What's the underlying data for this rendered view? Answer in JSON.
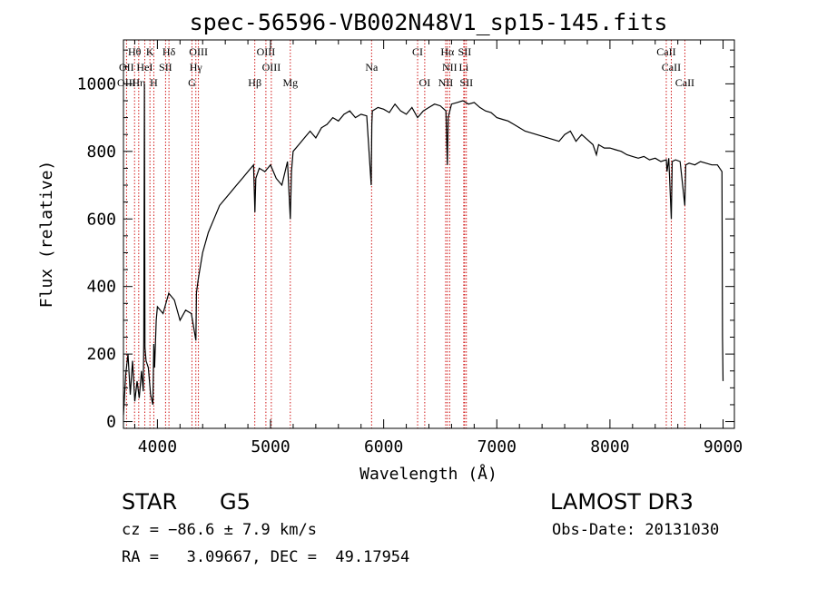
{
  "chart_data": {
    "type": "line",
    "title": "spec-56596-VB002N48V1_sp15-145.fits",
    "xlabel": "Wavelength (Å)",
    "ylabel": "Flux (relative)",
    "xlim": [
      3700,
      9100
    ],
    "ylim": [
      -20,
      1130
    ],
    "xticks": [
      4000,
      5000,
      6000,
      7000,
      8000,
      9000
    ],
    "xtick_labels": [
      "4000",
      "5000",
      "6000",
      "7000",
      "8000",
      "9000"
    ],
    "yticks": [
      0,
      200,
      400,
      600,
      800,
      1000
    ],
    "ytick_labels": [
      "0",
      "200",
      "400",
      "600",
      "800",
      "1000"
    ],
    "series": [
      {
        "name": "flux",
        "x": [
          3700,
          3720,
          3740,
          3760,
          3780,
          3800,
          3820,
          3840,
          3860,
          3875,
          3880,
          3885,
          3890,
          3900,
          3920,
          3940,
          3960,
          3968,
          3975,
          3990,
          4000,
          4050,
          4100,
          4150,
          4200,
          4250,
          4300,
          4340,
          4345,
          4360,
          4400,
          4450,
          4500,
          4550,
          4600,
          4650,
          4700,
          4750,
          4800,
          4850,
          4862,
          4870,
          4900,
          4950,
          5000,
          5050,
          5100,
          5150,
          5175,
          5185,
          5200,
          5250,
          5300,
          5350,
          5400,
          5450,
          5500,
          5550,
          5600,
          5650,
          5700,
          5750,
          5800,
          5850,
          5890,
          5895,
          5900,
          5950,
          6000,
          6050,
          6100,
          6150,
          6200,
          6250,
          6300,
          6350,
          6400,
          6450,
          6500,
          6550,
          6563,
          6570,
          6600,
          6650,
          6700,
          6750,
          6800,
          6850,
          6900,
          6950,
          7000,
          7050,
          7100,
          7150,
          7200,
          7250,
          7300,
          7350,
          7400,
          7450,
          7500,
          7550,
          7600,
          7650,
          7700,
          7750,
          7800,
          7850,
          7880,
          7900,
          7950,
          8000,
          8050,
          8100,
          8150,
          8200,
          8250,
          8300,
          8350,
          8400,
          8450,
          8498,
          8505,
          8520,
          8542,
          8550,
          8580,
          8620,
          8662,
          8670,
          8700,
          8750,
          8800,
          8850,
          8900,
          8950,
          8990,
          8995,
          9000
        ],
        "y": [
          20,
          140,
          200,
          80,
          180,
          60,
          120,
          70,
          150,
          90,
          240,
          1000,
          220,
          180,
          160,
          80,
          50,
          230,
          160,
          300,
          340,
          320,
          380,
          360,
          300,
          330,
          320,
          240,
          380,
          420,
          500,
          560,
          600,
          640,
          660,
          680,
          700,
          720,
          740,
          760,
          620,
          720,
          750,
          740,
          760,
          720,
          700,
          770,
          600,
          740,
          800,
          820,
          840,
          860,
          840,
          870,
          880,
          900,
          890,
          910,
          920,
          900,
          910,
          905,
          700,
          880,
          920,
          930,
          925,
          915,
          940,
          920,
          910,
          930,
          900,
          920,
          930,
          940,
          935,
          920,
          760,
          900,
          940,
          945,
          950,
          940,
          945,
          930,
          920,
          915,
          900,
          895,
          890,
          880,
          870,
          860,
          855,
          850,
          845,
          840,
          835,
          830,
          850,
          860,
          830,
          850,
          835,
          820,
          790,
          820,
          810,
          810,
          805,
          800,
          790,
          785,
          780,
          785,
          775,
          780,
          770,
          775,
          740,
          780,
          600,
          770,
          775,
          770,
          640,
          760,
          765,
          760,
          770,
          765,
          760,
          760,
          740,
          250,
          120
        ]
      }
    ],
    "spectral_lines": [
      {
        "label": "Hθ",
        "x": 3798,
        "row": 1
      },
      {
        "label": "K",
        "x": 3934,
        "row": 1
      },
      {
        "label": "Hδ",
        "x": 4102,
        "row": 1
      },
      {
        "label": "OIII",
        "x": 4363,
        "row": 1
      },
      {
        "label": "OIII",
        "x": 4959,
        "row": 1
      },
      {
        "label": "CI",
        "x": 6300,
        "row": 1
      },
      {
        "label": "Hα",
        "x": 6563,
        "row": 1
      },
      {
        "label": "SII",
        "x": 6716,
        "row": 1
      },
      {
        "label": "CaII",
        "x": 8498,
        "row": 1
      },
      {
        "label": "OII",
        "x": 3727,
        "row": 2
      },
      {
        "label": "HeI",
        "x": 3888,
        "row": 2
      },
      {
        "label": "SII",
        "x": 4072,
        "row": 2
      },
      {
        "label": "Hγ",
        "x": 4340,
        "row": 2
      },
      {
        "label": "OIII",
        "x": 5007,
        "row": 2
      },
      {
        "label": "Na",
        "x": 5893,
        "row": 2
      },
      {
        "label": "NII",
        "x": 6583,
        "row": 2
      },
      {
        "label": "Li",
        "x": 6708,
        "row": 2
      },
      {
        "label": "CaII",
        "x": 8542,
        "row": 2
      },
      {
        "label": "OIII",
        "x": 3727,
        "row": 3
      },
      {
        "label": "Hη",
        "x": 3835,
        "row": 3
      },
      {
        "label": "H",
        "x": 3968,
        "row": 3
      },
      {
        "label": "G",
        "x": 4305,
        "row": 3
      },
      {
        "label": "Hβ",
        "x": 4861,
        "row": 3
      },
      {
        "label": "Mg",
        "x": 5175,
        "row": 3
      },
      {
        "label": "OI",
        "x": 6363,
        "row": 3
      },
      {
        "label": "NII",
        "x": 6548,
        "row": 3
      },
      {
        "label": "SII",
        "x": 6731,
        "row": 3
      },
      {
        "label": "CaII",
        "x": 8662,
        "row": 3
      }
    ]
  },
  "info": {
    "class": "STAR",
    "subclass": "G5",
    "survey": "LAMOST DR3",
    "cz": "cz = −86.6 ± 7.9 km/s",
    "obs_date": "Obs-Date: 20131030",
    "coords": "RA =   3.09667, DEC =  49.17954"
  },
  "colors": {
    "spectrum": "#000000",
    "lines": "#cc0000",
    "axes": "#000000"
  }
}
